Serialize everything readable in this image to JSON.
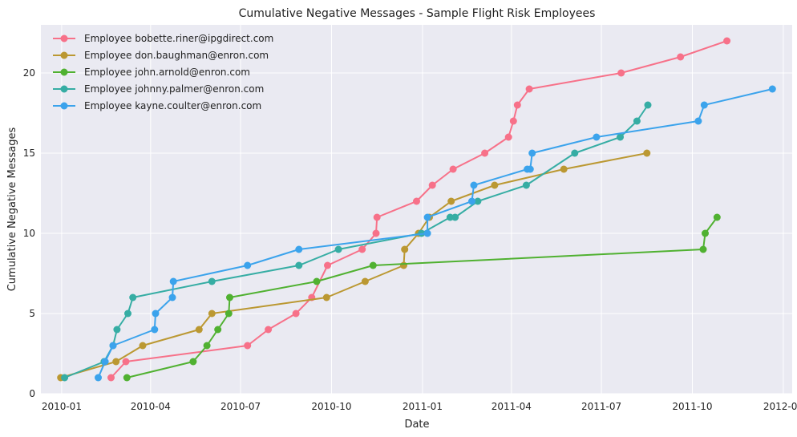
{
  "chart_data": {
    "type": "line",
    "title": "Cumulative Negative Messages - Sample Flight Risk Employees",
    "xlabel": "Date",
    "ylabel": "Cumulative Negative Messages",
    "x_ticks": [
      "2010-01-01",
      "2010-04-01",
      "2010-07-01",
      "2010-10-01",
      "2011-01-01",
      "2011-04-01",
      "2011-07-01",
      "2011-10-01",
      "2012-01-01"
    ],
    "x_tick_labels": [
      "2010-01",
      "2010-04",
      "2010-07",
      "2010-10",
      "2011-01",
      "2011-04",
      "2011-07",
      "2011-10",
      "2012-01"
    ],
    "xlim": [
      "2009-12-11",
      "2012-01-10"
    ],
    "y_ticks": [
      0,
      5,
      10,
      15,
      20
    ],
    "ylim": [
      0,
      23
    ],
    "grid": true,
    "legend": "top-left",
    "series": [
      {
        "name": "Employee bobette.riner@ipgdirect.com",
        "color": "#f77189",
        "points": [
          [
            "2010-02-20",
            1
          ],
          [
            "2010-03-07",
            2
          ],
          [
            "2010-07-08",
            3
          ],
          [
            "2010-07-29",
            4
          ],
          [
            "2010-08-26",
            5
          ],
          [
            "2010-09-11",
            6
          ],
          [
            "2010-09-27",
            8
          ],
          [
            "2010-11-01",
            9
          ],
          [
            "2010-11-15",
            10
          ],
          [
            "2010-11-16",
            11
          ],
          [
            "2010-12-26",
            12
          ],
          [
            "2011-01-11",
            13
          ],
          [
            "2011-02-01",
            14
          ],
          [
            "2011-03-05",
            15
          ],
          [
            "2011-03-29",
            16
          ],
          [
            "2011-04-03",
            17
          ],
          [
            "2011-04-07",
            18
          ],
          [
            "2011-04-19",
            19
          ],
          [
            "2011-07-21",
            20
          ],
          [
            "2011-09-19",
            21
          ],
          [
            "2011-11-05",
            22
          ]
        ]
      },
      {
        "name": "Employee don.baughman@enron.com",
        "color": "#bb9832",
        "points": [
          [
            "2009-12-31",
            1
          ],
          [
            "2010-02-25",
            2
          ],
          [
            "2010-03-24",
            3
          ],
          [
            "2010-05-20",
            4
          ],
          [
            "2010-06-02",
            5
          ],
          [
            "2010-09-26",
            6
          ],
          [
            "2010-11-04",
            7
          ],
          [
            "2010-12-13",
            8
          ],
          [
            "2010-12-14",
            9
          ],
          [
            "2010-12-28",
            10
          ],
          [
            "2011-01-08",
            11
          ],
          [
            "2011-01-30",
            12
          ],
          [
            "2011-03-15",
            13
          ],
          [
            "2011-05-24",
            14
          ],
          [
            "2011-08-16",
            15
          ]
        ]
      },
      {
        "name": "Employee john.arnold@enron.com",
        "color": "#50b131",
        "points": [
          [
            "2010-03-08",
            1
          ],
          [
            "2010-05-14",
            2
          ],
          [
            "2010-05-28",
            3
          ],
          [
            "2010-06-08",
            4
          ],
          [
            "2010-06-19",
            5
          ],
          [
            "2010-06-20",
            6
          ],
          [
            "2010-09-16",
            7
          ],
          [
            "2010-11-12",
            8
          ],
          [
            "2011-10-12",
            9
          ],
          [
            "2011-10-14",
            10
          ],
          [
            "2011-10-26",
            11
          ]
        ]
      },
      {
        "name": "Employee johnny.palmer@enron.com",
        "color": "#36ada4",
        "points": [
          [
            "2010-01-04",
            1
          ],
          [
            "2010-02-13",
            2
          ],
          [
            "2010-02-22",
            3
          ],
          [
            "2010-02-26",
            4
          ],
          [
            "2010-03-09",
            5
          ],
          [
            "2010-03-14",
            6
          ],
          [
            "2010-06-02",
            7
          ],
          [
            "2010-08-29",
            8
          ],
          [
            "2010-10-08",
            9
          ],
          [
            "2010-12-31",
            10
          ],
          [
            "2011-01-29",
            11
          ],
          [
            "2011-02-03",
            11
          ],
          [
            "2011-02-26",
            12
          ],
          [
            "2011-04-16",
            13
          ],
          [
            "2011-06-04",
            15
          ],
          [
            "2011-07-20",
            16
          ],
          [
            "2011-08-06",
            17
          ],
          [
            "2011-08-17",
            18
          ]
        ]
      },
      {
        "name": "Employee kayne.coulter@enron.com",
        "color": "#3ba3ec",
        "points": [
          [
            "2010-02-07",
            1
          ],
          [
            "2010-02-14",
            2
          ],
          [
            "2010-02-22",
            3
          ],
          [
            "2010-04-05",
            4
          ],
          [
            "2010-04-06",
            5
          ],
          [
            "2010-04-23",
            6
          ],
          [
            "2010-04-24",
            7
          ],
          [
            "2010-07-08",
            8
          ],
          [
            "2010-08-29",
            9
          ],
          [
            "2011-01-06",
            10
          ],
          [
            "2011-01-06",
            11
          ],
          [
            "2011-02-20",
            12
          ],
          [
            "2011-02-22",
            13
          ],
          [
            "2011-04-17",
            14
          ],
          [
            "2011-04-20",
            14
          ],
          [
            "2011-04-22",
            15
          ],
          [
            "2011-06-26",
            16
          ],
          [
            "2011-10-07",
            17
          ],
          [
            "2011-10-13",
            18
          ],
          [
            "2011-12-21",
            19
          ]
        ]
      }
    ]
  }
}
